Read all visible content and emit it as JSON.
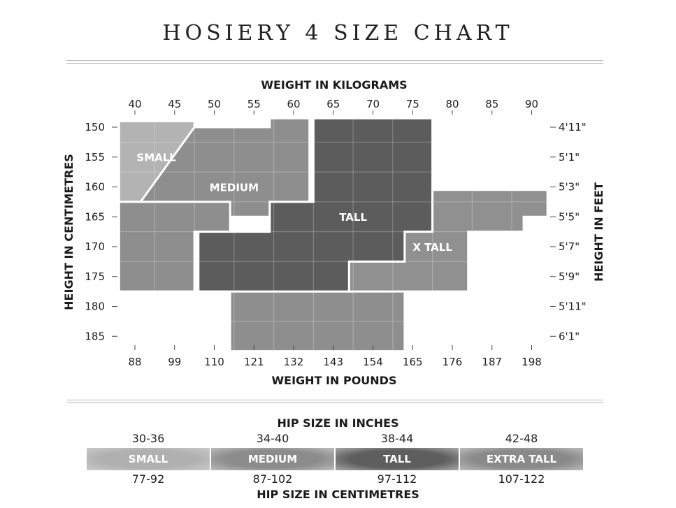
{
  "title": "HOSIERY 4 SIZE CHART",
  "chart_data": {
    "type": "region",
    "title": "HOSIERY 4 SIZE CHART",
    "x_label_top": "WEIGHT IN KILOGRAMS",
    "x_label_bottom": "WEIGHT IN POUNDS",
    "y_label_left": "HEIGHT IN CENTIMETRES",
    "y_label_right": "HEIGHT IN FEET",
    "kg_ticks": [
      40,
      45,
      50,
      55,
      60,
      65,
      70,
      75,
      80,
      85,
      90
    ],
    "lb_ticks": [
      "88",
      "99",
      "110",
      "121",
      "132",
      "143",
      "154",
      "165",
      "176",
      "187",
      "198"
    ],
    "cm_ticks": [
      150,
      155,
      160,
      165,
      170,
      175,
      180,
      185
    ],
    "ft_ticks": [
      "4'11\"",
      "5'1\"",
      "5'3\"",
      "5'5\"",
      "5'7\"",
      "5'9\"",
      "5'11\"",
      "6'1\""
    ],
    "grid": true,
    "regions": [
      {
        "name": "SMALL",
        "color": "#b3b3b3",
        "label_at": {
          "kg": 42.7,
          "cm": 155.1
        },
        "polygon": [
          [
            38,
            149
          ],
          [
            47.5,
            149
          ],
          [
            47.5,
            162.5
          ],
          [
            38,
            162.5
          ]
        ]
      },
      {
        "name": "MEDIUM",
        "color": "#8e8e8e",
        "label_at": {
          "kg": 52.5,
          "cm": 160.1
        },
        "polygon": [
          [
            47.5,
            150
          ],
          [
            57,
            150
          ],
          [
            57,
            148.5
          ],
          [
            62,
            148.5
          ],
          [
            62,
            162.5
          ],
          [
            57,
            162.5
          ],
          [
            57,
            165
          ],
          [
            52,
            165
          ],
          [
            52,
            167.5
          ],
          [
            47.5,
            167.5
          ],
          [
            47.5,
            162.5
          ],
          [
            38,
            162.5
          ],
          [
            38,
            167.5
          ]
        ]
      },
      {
        "name": "MEDIUM",
        "color": "#8e8e8e",
        "polygon": [
          [
            38,
            162.5
          ],
          [
            52,
            162.5
          ],
          [
            52,
            167.5
          ],
          [
            47.5,
            167.5
          ],
          [
            47.5,
            177.5
          ],
          [
            38,
            177.5
          ]
        ]
      },
      {
        "name": "MEDIUM",
        "color": "#8e8e8e",
        "polygon": [
          [
            52,
            177.5
          ],
          [
            72,
            177.5
          ],
          [
            72,
            172.5
          ],
          [
            74,
            172.5
          ],
          [
            74,
            187.5
          ],
          [
            52,
            187.5
          ]
        ]
      },
      {
        "name": "TALL",
        "color": "#5c5c5c",
        "label_at": {
          "kg": 67.5,
          "cm": 165.1
        },
        "polygon": [
          [
            62.5,
            148.5
          ],
          [
            77.5,
            148.5
          ],
          [
            77.5,
            167.5
          ],
          [
            74,
            167.5
          ],
          [
            74,
            172.5
          ],
          [
            67,
            172.5
          ],
          [
            67,
            177.5
          ],
          [
            48,
            177.5
          ],
          [
            48,
            167.5
          ],
          [
            57,
            167.5
          ],
          [
            57,
            162.5
          ],
          [
            62.5,
            162.5
          ]
        ]
      },
      {
        "name": "X TALL",
        "color": "#909090",
        "label_at": {
          "kg": 77.5,
          "cm": 170.1
        },
        "polygon": [
          [
            77.5,
            160.5
          ],
          [
            92,
            160.5
          ],
          [
            92,
            165
          ],
          [
            89,
            165
          ],
          [
            89,
            167.5
          ],
          [
            82,
            167.5
          ],
          [
            82,
            177.5
          ],
          [
            67,
            177.5
          ],
          [
            67,
            172.5
          ],
          [
            74,
            172.5
          ],
          [
            74,
            167.5
          ],
          [
            77.5,
            167.5
          ]
        ]
      }
    ]
  },
  "hip": {
    "inches_label": "HIP SIZE IN INCHES",
    "cm_label": "HIP SIZE IN CENTIMETRES",
    "sizes": [
      {
        "name": "SMALL",
        "inches": "30-36",
        "cm": "77-92",
        "color": "#b0b0b0"
      },
      {
        "name": "MEDIUM",
        "inches": "34-40",
        "cm": "87-102",
        "color": "#8c8c8c"
      },
      {
        "name": "TALL",
        "inches": "38-44",
        "cm": "97-112",
        "color": "#5e5e5e"
      },
      {
        "name": "EXTRA TALL",
        "inches": "42-48",
        "cm": "107-122",
        "color": "#8a8a8a"
      }
    ]
  }
}
